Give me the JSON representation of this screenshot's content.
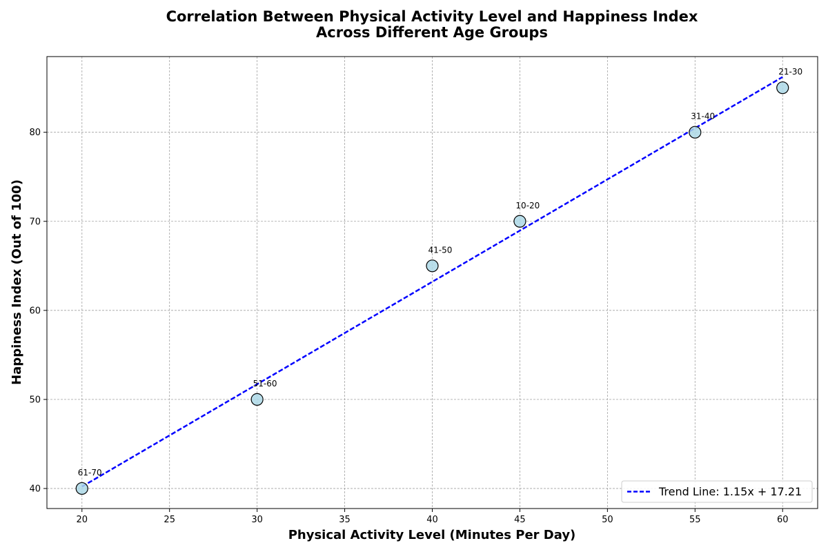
{
  "chart_data": {
    "type": "scatter",
    "title": "Correlation Between Physical Activity Level and Happiness Index",
    "subtitle": "Across Different Age Groups",
    "xlabel": "Physical Activity Level (Minutes Per Day)",
    "ylabel": "Happiness Index (Out of 100)",
    "xlim": [
      18,
      62
    ],
    "ylim": [
      37.75,
      88.5
    ],
    "xticks": [
      20,
      25,
      30,
      35,
      40,
      45,
      50,
      55,
      60
    ],
    "yticks": [
      40,
      50,
      60,
      70,
      80
    ],
    "grid": true,
    "legend_position": "bottom-right",
    "points": [
      {
        "label": "10-20",
        "x": 45,
        "y": 70
      },
      {
        "label": "21-30",
        "x": 60,
        "y": 85
      },
      {
        "label": "31-40",
        "x": 55,
        "y": 80
      },
      {
        "label": "41-50",
        "x": 40,
        "y": 65
      },
      {
        "label": "51-60",
        "x": 30,
        "y": 50
      },
      {
        "label": "61-70",
        "x": 20,
        "y": 40
      }
    ],
    "trend_line": {
      "label": "Trend Line: 1.15x + 17.21",
      "slope": 1.15,
      "intercept": 17.21,
      "x_range": [
        20,
        60
      ],
      "color": "#0000ff"
    },
    "point_fill": "#add8e6",
    "point_edge": "#000000"
  }
}
